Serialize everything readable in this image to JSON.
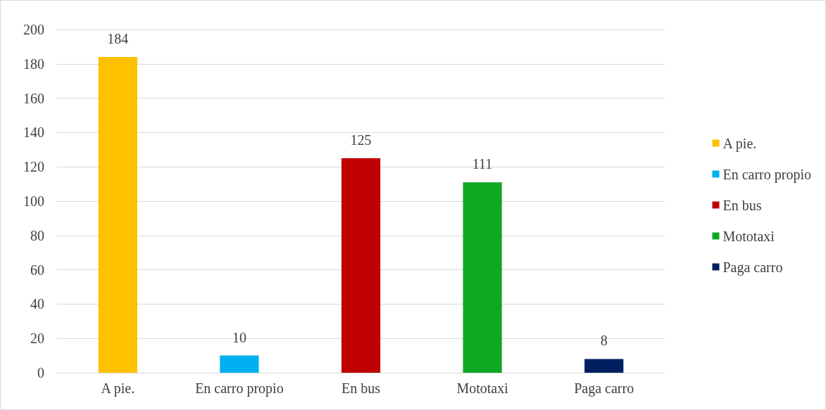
{
  "chart_data": {
    "type": "bar",
    "categories": [
      "A pie.",
      "En carro propio",
      "En bus",
      "Mototaxi",
      "Paga carro"
    ],
    "stacked": true,
    "series": [
      {
        "name": "A pie.",
        "color": "#ffc000",
        "values": [
          184,
          null,
          null,
          null,
          null
        ]
      },
      {
        "name": "En carro propio",
        "color": "#00b0f0",
        "values": [
          null,
          10,
          null,
          null,
          null
        ]
      },
      {
        "name": "En bus",
        "color": "#c00000",
        "values": [
          null,
          null,
          125,
          null,
          null
        ]
      },
      {
        "name": "Mototaxi",
        "color": "#0ea823",
        "values": [
          null,
          null,
          null,
          111,
          null
        ]
      },
      {
        "name": "Paga carro",
        "color": "#002060",
        "values": [
          null,
          null,
          null,
          null,
          8
        ]
      }
    ],
    "ylim": [
      0,
      200
    ],
    "yticks": [
      0,
      20,
      40,
      60,
      80,
      100,
      120,
      140,
      160,
      180,
      200
    ],
    "grid": "y",
    "legend": "right",
    "data_labels": true
  }
}
